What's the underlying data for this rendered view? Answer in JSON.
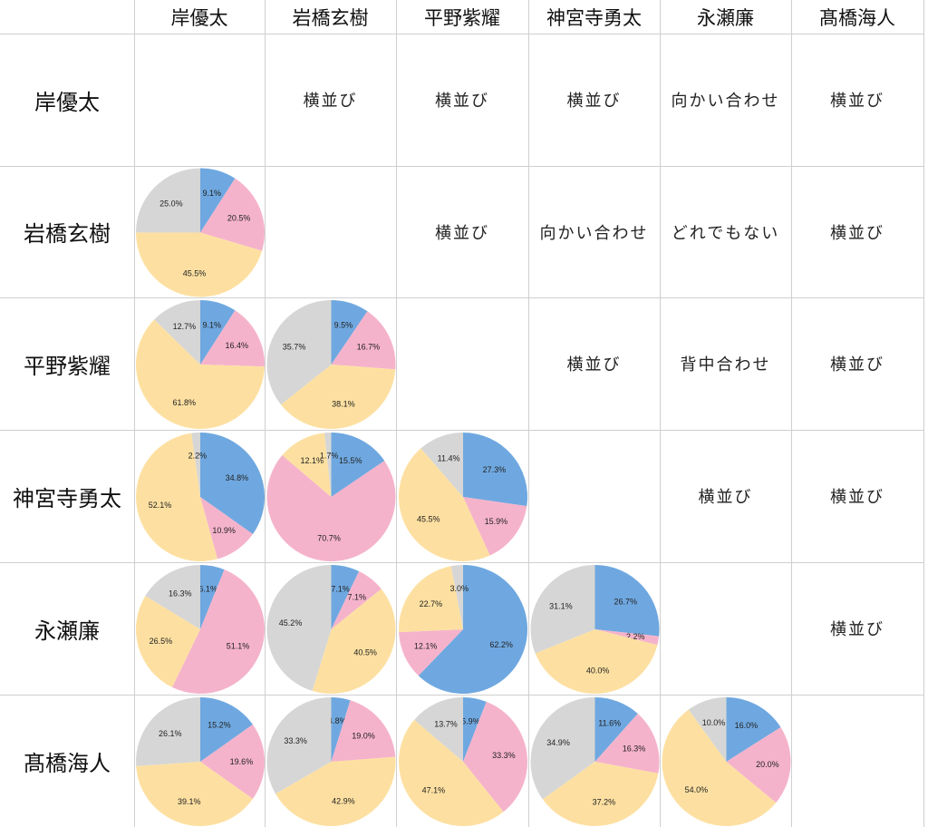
{
  "colors": {
    "blue": "#6fa8e0",
    "pink": "#f5b3cb",
    "yellow": "#fde0a1",
    "gray": "#d6d6d6",
    "grid": "#cfcfcf"
  },
  "names": [
    "岸優太",
    "岩橋玄樹",
    "平野紫耀",
    "神宮寺勇太",
    "永瀬廉",
    "髙橋海人"
  ],
  "relations": [
    [
      "",
      "横並び",
      "横並び",
      "横並び",
      "向かい合わせ",
      "横並び"
    ],
    [
      "",
      "",
      "横並び",
      "向かい合わせ",
      "どれでもない",
      "横並び"
    ],
    [
      "",
      "",
      "",
      "横並び",
      "背中合わせ",
      "横並び"
    ],
    [
      "",
      "",
      "",
      "",
      "横並び",
      "横並び"
    ],
    [
      "",
      "",
      "",
      "",
      "",
      "横並び"
    ],
    [
      "",
      "",
      "",
      "",
      "",
      ""
    ]
  ],
  "chart_data": {
    "type": "pie",
    "slice_order": [
      "blue",
      "pink",
      "yellow",
      "gray"
    ],
    "pies": [
      {
        "row": 1,
        "col": 0,
        "values": [
          9.1,
          20.5,
          45.5,
          25.0
        ],
        "labels": [
          "9.1%",
          "20.5%",
          "45.5%",
          "25.0%"
        ]
      },
      {
        "row": 2,
        "col": 0,
        "values": [
          9.1,
          16.4,
          61.8,
          12.7
        ],
        "labels": [
          "9.1%",
          "16.4%",
          "61.8%",
          "12.7%"
        ]
      },
      {
        "row": 2,
        "col": 1,
        "values": [
          9.5,
          16.7,
          38.1,
          35.7
        ],
        "labels": [
          "9.5%",
          "16.7%",
          "38.1%",
          "35.7%"
        ]
      },
      {
        "row": 3,
        "col": 0,
        "values": [
          34.8,
          10.9,
          52.1,
          2.2
        ],
        "labels": [
          "34.8%",
          "10.9%",
          "52.1%",
          "2.2%"
        ]
      },
      {
        "row": 3,
        "col": 1,
        "values": [
          15.5,
          70.7,
          12.1,
          1.7
        ],
        "labels": [
          "15.5%",
          "70.7%",
          "12.1%",
          "1.7%"
        ]
      },
      {
        "row": 3,
        "col": 2,
        "values": [
          27.3,
          15.9,
          45.5,
          11.4
        ],
        "labels": [
          "27.3%",
          "15.9%",
          "45.5%",
          "11.4%"
        ]
      },
      {
        "row": 4,
        "col": 0,
        "values": [
          6.1,
          51.1,
          26.5,
          16.3
        ],
        "labels": [
          "6.1%",
          "51.1%",
          "26.5%",
          "16.3%"
        ]
      },
      {
        "row": 4,
        "col": 1,
        "values": [
          7.1,
          7.1,
          40.5,
          45.2
        ],
        "labels": [
          "7.1%",
          "7.1%",
          "40.5%",
          "45.2%"
        ]
      },
      {
        "row": 4,
        "col": 2,
        "values": [
          62.2,
          12.1,
          22.7,
          3.0
        ],
        "labels": [
          "62.2%",
          "12.1%",
          "22.7%",
          "3.0%"
        ]
      },
      {
        "row": 4,
        "col": 3,
        "values": [
          26.7,
          2.2,
          40.0,
          31.1
        ],
        "labels": [
          "26.7%",
          "2.2%",
          "40.0%",
          "31.1%"
        ]
      },
      {
        "row": 5,
        "col": 0,
        "values": [
          15.2,
          19.6,
          39.1,
          26.1
        ],
        "labels": [
          "15.2%",
          "19.6%",
          "39.1%",
          "26.1%"
        ]
      },
      {
        "row": 5,
        "col": 1,
        "values": [
          4.8,
          19.0,
          42.9,
          33.3
        ],
        "labels": [
          "4.8%",
          "19.0%",
          "42.9%",
          "33.3%"
        ]
      },
      {
        "row": 5,
        "col": 2,
        "values": [
          5.9,
          33.3,
          47.1,
          13.7
        ],
        "labels": [
          "5.9%",
          "33.3%",
          "47.1%",
          "13.7%"
        ]
      },
      {
        "row": 5,
        "col": 3,
        "values": [
          11.6,
          16.3,
          37.2,
          34.9
        ],
        "labels": [
          "11.6%",
          "16.3%",
          "37.2%",
          "34.9%"
        ]
      },
      {
        "row": 5,
        "col": 4,
        "values": [
          16.0,
          20.0,
          54.0,
          10.0
        ],
        "labels": [
          "16.0%",
          "20.0%",
          "54.0%",
          "10.0%"
        ]
      }
    ]
  }
}
